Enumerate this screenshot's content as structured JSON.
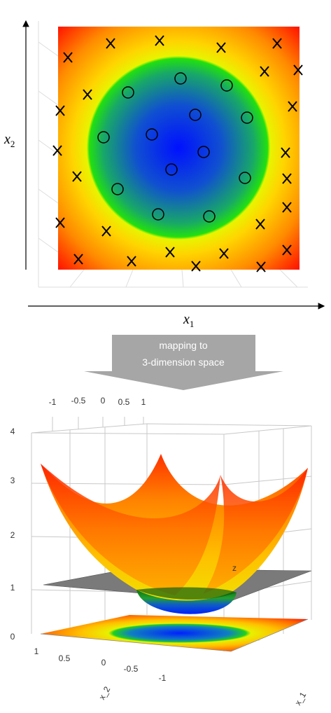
{
  "plot_2d": {
    "x_label": "x",
    "x_label_sub": "1",
    "y_label": "x",
    "y_label_sub": "2"
  },
  "arrow": {
    "lines": [
      "mapping to",
      "3-dimension space"
    ]
  },
  "plot_3d": {
    "z_ticks": [
      "0",
      "1",
      "2",
      "3",
      "4"
    ],
    "top_ticks": [
      "-1",
      "-0.5",
      "0",
      "0.5",
      "1"
    ],
    "x2_ticks": [
      "1",
      "0.5",
      "0",
      "-0.5",
      "-1"
    ],
    "z_label": "z",
    "x2_label": "x_2",
    "x1_label": "x_1"
  }
}
